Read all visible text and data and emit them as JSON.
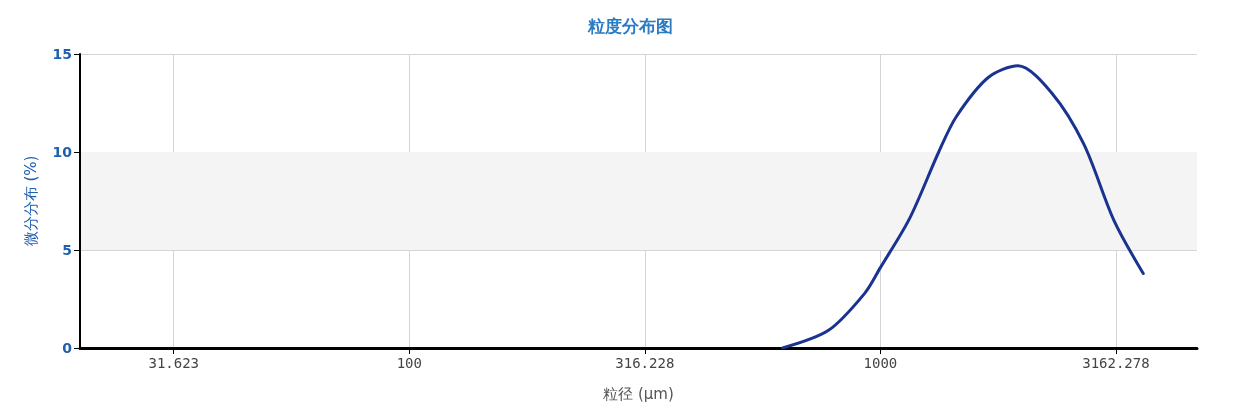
{
  "chart_data": {
    "type": "line",
    "title": "粒度分布图",
    "xlabel": "粒径 (μm)",
    "ylabel": "微分分布 (%)",
    "log": "x",
    "xlim": [
      20,
      4700
    ],
    "xticks": [
      31.623,
      100,
      316.228,
      1000,
      3162.278
    ],
    "ylim": [
      0,
      15
    ],
    "yticks": [
      0,
      5,
      10,
      15
    ],
    "grid": true,
    "marker": "none",
    "line_style": "solid",
    "bands": [
      {
        "axis": "y",
        "from": 5,
        "to": 10,
        "color": "#f4f4f4"
      }
    ],
    "series": [
      {
        "color": "#1a3391",
        "x": [
          620,
          776,
          927,
          1000,
          1153,
          1330,
          1449,
          1694,
          1959,
          2313,
          2703,
          3133,
          3614
        ],
        "values": [
          0,
          0.9,
          2.8,
          4.1,
          6.6,
          10.0,
          11.8,
          13.8,
          14.4,
          13.0,
          10.4,
          6.5,
          3.8
        ]
      }
    ]
  }
}
